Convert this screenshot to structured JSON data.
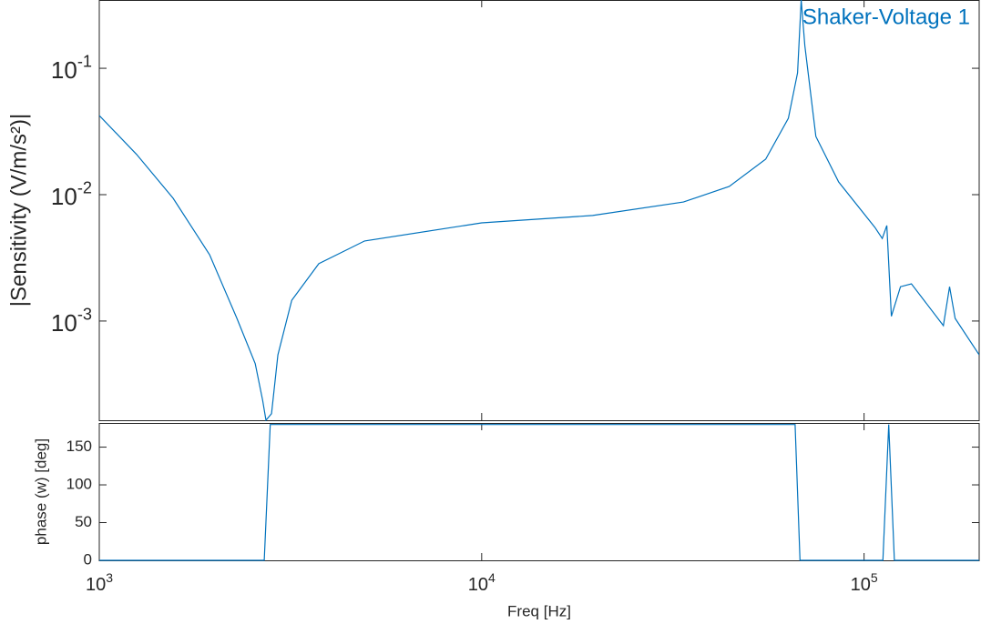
{
  "chart_data": [
    {
      "type": "line",
      "xscale": "log",
      "yscale": "log",
      "ylabel": "|Sensitivity (V/m/s²)|",
      "xlim": [
        1000,
        200000
      ],
      "ylim": [
        0.000164,
        0.347
      ],
      "xticks": [
        1000,
        10000,
        100000
      ],
      "yticks": [
        {
          "value": 0.001,
          "label": "10",
          "exponent": "-3"
        },
        {
          "value": 0.01,
          "label": "10",
          "exponent": "-2"
        },
        {
          "value": 0.1,
          "label": "10",
          "exponent": "-1"
        }
      ],
      "x": [
        1000,
        1252,
        1560,
        1943,
        2290,
        2557,
        2673,
        2729,
        2822,
        2932,
        3186,
        3751,
        4941,
        10000,
        19500,
        33700,
        44400,
        55300,
        63400,
        67000,
        68500,
        70000,
        74800,
        85800,
        106800,
        111600,
        114700,
        117900,
        124500,
        133000,
        161200,
        167300,
        173000,
        200000
      ],
      "series": [
        {
          "name": "Shaker-Voltage  1",
          "color": "#0072bd",
          "values": [
            0.0423,
            0.0208,
            0.00936,
            0.00335,
            0.00105,
            0.00046,
            0.000237,
            0.000164,
            0.000185,
            0.00054,
            0.00146,
            0.00284,
            0.0043,
            0.00598,
            0.00684,
            0.00875,
            0.01161,
            0.0191,
            0.0402,
            0.092,
            0.347,
            0.151,
            0.0289,
            0.0126,
            0.0055,
            0.0045,
            0.0057,
            0.00109,
            0.00187,
            0.00197,
            0.00092,
            0.00187,
            0.00105,
            0.00054
          ]
        }
      ]
    },
    {
      "type": "line",
      "xscale": "log",
      "yscale": "linear",
      "xlabel": "Freq [Hz]",
      "ylabel": "phase (w) [deg]",
      "xlim": [
        1000,
        200000
      ],
      "ylim": [
        0,
        182
      ],
      "xticks": [
        {
          "value": 1000,
          "label": "10",
          "exponent": "3"
        },
        {
          "value": 10000,
          "label": "10",
          "exponent": "4"
        },
        {
          "value": 100000,
          "label": "10",
          "exponent": "5"
        }
      ],
      "yticks": [
        0,
        50,
        100,
        150
      ],
      "x": [
        1000,
        2700,
        2800,
        66000,
        68000,
        112000,
        116000,
        120000,
        200000
      ],
      "series": [
        {
          "color": "#0072bd",
          "values": [
            0,
            0,
            180,
            180,
            0,
            0,
            180,
            0,
            0
          ]
        }
      ]
    }
  ]
}
